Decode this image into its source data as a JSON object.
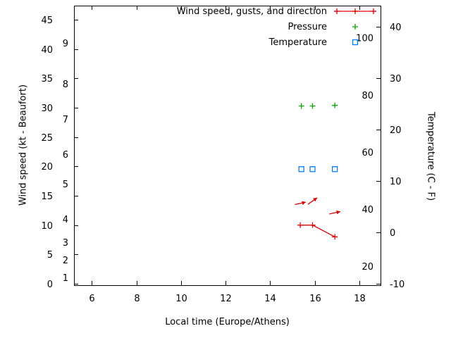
{
  "chart_data": {
    "type": "line",
    "title": "",
    "xlabel": "Local time (Europe/Athens)",
    "ylabel_left": "Wind speed (kt - Beaufort)",
    "ylabel_right": "Temperature (C - F)",
    "x_ticks": [
      6,
      8,
      10,
      12,
      14,
      16,
      18
    ],
    "x_range": [
      5.2,
      18.95
    ],
    "y_left_ticks": [
      0,
      5,
      10,
      15,
      20,
      25,
      30,
      35,
      40,
      45
    ],
    "y_left_range": [
      -0.24,
      47.4
    ],
    "beaufort_scale": [
      {
        "label": "1",
        "kt": 1
      },
      {
        "label": "2",
        "kt": 4
      },
      {
        "label": "3",
        "kt": 7
      },
      {
        "label": "4",
        "kt": 11
      },
      {
        "label": "5",
        "kt": 17
      },
      {
        "label": "6",
        "kt": 22
      },
      {
        "label": "7",
        "kt": 28
      },
      {
        "label": "8",
        "kt": 34
      },
      {
        "label": "9",
        "kt": 41
      }
    ],
    "y_right_ticks": [
      -10,
      0,
      10,
      20,
      30,
      40
    ],
    "y_right_range": [
      -10.27,
      44.1
    ],
    "fahrenheit_labels": [
      20,
      40,
      60,
      80,
      100
    ],
    "colors": {
      "wind": "#dd0000",
      "pressure": "#00a800",
      "temperature": "#0080ff",
      "axis": "#000000",
      "text": "#000000"
    },
    "legend": [
      {
        "label": "Wind speed, gusts, and direction",
        "marker": "line-plus",
        "color": "#dd0000"
      },
      {
        "label": "Pressure",
        "marker": "plus",
        "color": "#00a800"
      },
      {
        "label": "Temperature",
        "marker": "square-open",
        "color": "#0080ff"
      }
    ],
    "series": {
      "wind_speed": {
        "name": "Wind speed, gusts, and direction",
        "x": [
          15.35,
          15.9,
          16.9
        ],
        "kt": [
          10,
          10,
          8
        ]
      },
      "wind_gust_arrows": [
        {
          "x": 15.35,
          "kt": 13.7,
          "angle_deg": 12
        },
        {
          "x": 15.9,
          "kt": 14.1,
          "angle_deg": 35
        },
        {
          "x": 16.9,
          "kt": 12.1,
          "angle_deg": 12
        }
      ],
      "pressure": {
        "name": "Pressure",
        "x": [
          15.4,
          15.9,
          16.9
        ],
        "y_on_wind_axis_kt": [
          30.3,
          30.3,
          30.4
        ]
      },
      "temperature": {
        "name": "Temperature",
        "x": [
          15.4,
          15.9,
          16.9
        ],
        "celsius": [
          12.3,
          12.3,
          12.3
        ]
      }
    }
  }
}
